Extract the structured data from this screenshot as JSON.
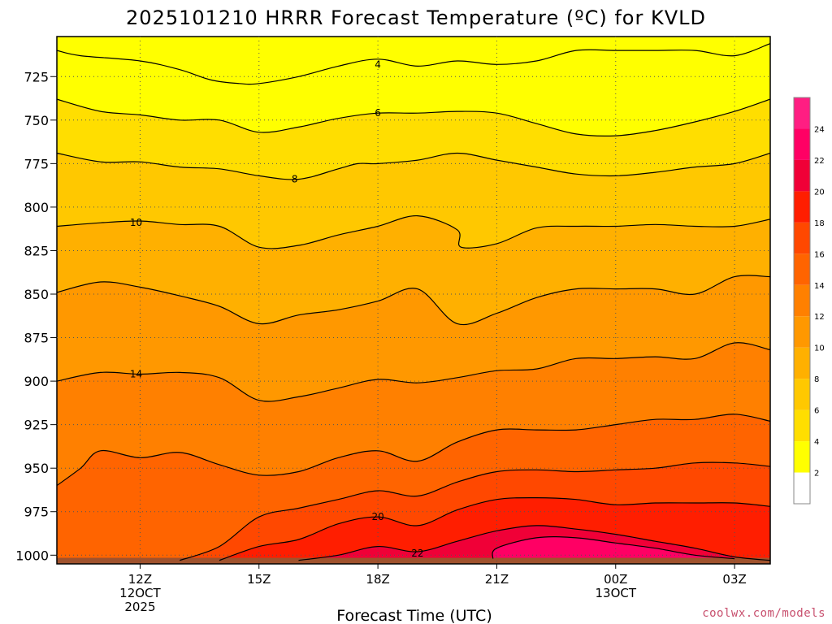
{
  "chart_data": {
    "type": "contour",
    "title": "2025101210 HRRR Forecast Temperature (ºC) for KVLD",
    "xlabel": "Forecast Time (UTC)",
    "credit": "coolwx.com/models",
    "pressure_ticks": [
      725,
      750,
      775,
      800,
      825,
      850,
      875,
      900,
      925,
      950,
      975,
      1000
    ],
    "ylim": [
      1005,
      702
    ],
    "xlim_hours": [
      9.9,
      27.9
    ],
    "x_ticks": [
      {
        "hour": 12,
        "lines": [
          "12Z",
          "12OCT",
          "2025"
        ]
      },
      {
        "hour": 15,
        "lines": [
          "15Z"
        ]
      },
      {
        "hour": 18,
        "lines": [
          "18Z"
        ]
      },
      {
        "hour": 21,
        "lines": [
          "21Z"
        ]
      },
      {
        "hour": 24,
        "lines": [
          "00Z",
          "13OCT"
        ]
      },
      {
        "hour": 27,
        "lines": [
          "03Z"
        ]
      }
    ],
    "colorbar": {
      "levels": [
        2,
        4,
        6,
        8,
        10,
        12,
        14,
        16,
        18,
        20,
        22,
        24
      ],
      "colors": [
        "#ffffff",
        "#ffff00",
        "#ffde00",
        "#ffc800",
        "#ffb000",
        "#ff9800",
        "#ff8000",
        "#ff6400",
        "#ff4800",
        "#ff1e00",
        "#f00037",
        "#ff0064",
        "#ff1e82"
      ]
    },
    "fill_colors": {
      "4": "#ffff00",
      "6": "#ffde00",
      "8": "#ffc800",
      "10": "#ffb000",
      "12": "#ff9800",
      "14": "#ff8000",
      "16": "#ff6400",
      "18": "#ff4800",
      "20": "#ff1e00",
      "22": "#f00037",
      "24": "#ff0064"
    },
    "ground_color": "#a0522d",
    "isotherms": [
      {
        "temp": 4,
        "label": "4",
        "label_at": [
          18.0,
          718
        ],
        "points": [
          [
            9.9,
            710
          ],
          [
            10.5,
            713
          ],
          [
            12,
            716
          ],
          [
            13,
            721
          ],
          [
            13.8,
            727
          ],
          [
            14.5,
            729
          ],
          [
            15,
            729
          ],
          [
            16,
            725
          ],
          [
            17,
            719
          ],
          [
            18,
            715
          ],
          [
            19,
            719
          ],
          [
            20,
            716
          ],
          [
            21,
            718
          ],
          [
            22,
            716
          ],
          [
            23,
            710
          ],
          [
            24,
            710
          ],
          [
            25,
            710
          ],
          [
            26,
            710
          ],
          [
            27,
            713
          ],
          [
            27.9,
            706
          ]
        ]
      },
      {
        "temp": 6,
        "label": "6",
        "label_at": [
          18.0,
          746
        ],
        "points": [
          [
            9.9,
            738
          ],
          [
            11,
            745
          ],
          [
            12,
            747
          ],
          [
            13,
            750
          ],
          [
            14,
            750
          ],
          [
            15,
            757
          ],
          [
            16,
            754
          ],
          [
            17,
            749
          ],
          [
            18,
            746
          ],
          [
            19,
            746
          ],
          [
            20,
            745
          ],
          [
            21,
            746
          ],
          [
            22,
            752
          ],
          [
            23,
            758
          ],
          [
            24,
            759
          ],
          [
            25,
            756
          ],
          [
            26,
            751
          ],
          [
            27,
            745
          ],
          [
            27.9,
            738
          ]
        ]
      },
      {
        "temp": 8,
        "label": "8",
        "label_at": [
          15.9,
          784
        ],
        "points": [
          [
            9.9,
            769
          ],
          [
            11,
            774
          ],
          [
            12,
            774
          ],
          [
            13,
            777
          ],
          [
            14,
            778
          ],
          [
            15,
            782
          ],
          [
            16,
            784
          ],
          [
            17,
            778
          ],
          [
            17.5,
            775
          ],
          [
            18,
            775
          ],
          [
            19,
            773
          ],
          [
            20,
            769
          ],
          [
            21,
            773
          ],
          [
            22,
            777
          ],
          [
            23,
            781
          ],
          [
            24,
            782
          ],
          [
            25,
            780
          ],
          [
            26,
            777
          ],
          [
            27,
            775
          ],
          [
            27.9,
            769
          ]
        ]
      },
      {
        "temp": 10,
        "label": "10",
        "label_at": [
          11.9,
          809
        ],
        "points": [
          [
            9.9,
            811
          ],
          [
            11,
            809
          ],
          [
            12,
            808
          ],
          [
            13,
            810
          ],
          [
            14,
            811
          ],
          [
            15,
            823
          ],
          [
            16,
            822
          ],
          [
            17,
            816
          ],
          [
            18,
            811
          ],
          [
            19,
            805
          ],
          [
            20,
            813
          ],
          [
            20.1,
            823
          ],
          [
            21,
            821
          ],
          [
            22,
            812
          ],
          [
            23,
            811
          ],
          [
            24,
            811
          ],
          [
            25,
            810
          ],
          [
            26,
            811
          ],
          [
            27,
            811
          ],
          [
            27.9,
            807
          ]
        ]
      },
      {
        "temp": 12,
        "points": [
          [
            9.9,
            849
          ],
          [
            11,
            843
          ],
          [
            12,
            846
          ],
          [
            13,
            851
          ],
          [
            14,
            857
          ],
          [
            15,
            867
          ],
          [
            16,
            862
          ],
          [
            17,
            859
          ],
          [
            18,
            854
          ],
          [
            19,
            847
          ],
          [
            20,
            867
          ],
          [
            21,
            861
          ],
          [
            22,
            852
          ],
          [
            23,
            847
          ],
          [
            24,
            847
          ],
          [
            25,
            847
          ],
          [
            26,
            850
          ],
          [
            27,
            840
          ],
          [
            27.9,
            840
          ]
        ]
      },
      {
        "temp": 14,
        "label": "14",
        "label_at": [
          11.9,
          896
        ],
        "points": [
          [
            9.9,
            900
          ],
          [
            11,
            895
          ],
          [
            12,
            896
          ],
          [
            13,
            895
          ],
          [
            14,
            898
          ],
          [
            15,
            911
          ],
          [
            16,
            909
          ],
          [
            17,
            904
          ],
          [
            18,
            899
          ],
          [
            19,
            901
          ],
          [
            20,
            898
          ],
          [
            21,
            894
          ],
          [
            22,
            893
          ],
          [
            23,
            887
          ],
          [
            24,
            887
          ],
          [
            25,
            886
          ],
          [
            26,
            887
          ],
          [
            27,
            878
          ],
          [
            27.9,
            882
          ]
        ]
      },
      {
        "temp": 16,
        "points": [
          [
            9.9,
            960
          ],
          [
            10.5,
            950
          ],
          [
            11,
            940
          ],
          [
            12,
            944
          ],
          [
            13,
            941
          ],
          [
            14,
            948
          ],
          [
            15,
            954
          ],
          [
            16,
            952
          ],
          [
            17,
            944
          ],
          [
            18,
            940
          ],
          [
            19,
            946
          ],
          [
            20,
            935
          ],
          [
            21,
            928
          ],
          [
            22,
            928
          ],
          [
            23,
            928
          ],
          [
            24,
            925
          ],
          [
            25,
            922
          ],
          [
            26,
            922
          ],
          [
            27,
            919
          ],
          [
            27.9,
            923
          ]
        ]
      },
      {
        "temp": 18,
        "points": [
          [
            13,
            1003
          ],
          [
            14,
            995
          ],
          [
            15,
            978
          ],
          [
            16,
            973
          ],
          [
            17,
            968
          ],
          [
            18,
            963
          ],
          [
            19,
            966
          ],
          [
            20,
            958
          ],
          [
            21,
            952
          ],
          [
            22,
            951
          ],
          [
            23,
            952
          ],
          [
            24,
            951
          ],
          [
            25,
            950
          ],
          [
            26,
            947
          ],
          [
            27,
            947
          ],
          [
            27.9,
            949
          ]
        ]
      },
      {
        "temp": 20,
        "label": "20",
        "label_at": [
          18.0,
          978
        ],
        "points": [
          [
            14,
            1003
          ],
          [
            15,
            995
          ],
          [
            16,
            991
          ],
          [
            17,
            982
          ],
          [
            18,
            978
          ],
          [
            19,
            983
          ],
          [
            20,
            974
          ],
          [
            21,
            968
          ],
          [
            22,
            967
          ],
          [
            23,
            968
          ],
          [
            24,
            971
          ],
          [
            25,
            970
          ],
          [
            26,
            970
          ],
          [
            27,
            970
          ],
          [
            27.9,
            972
          ]
        ]
      },
      {
        "temp": 22,
        "label": "22",
        "label_at": [
          19.0,
          999
        ],
        "points": [
          [
            16,
            1003
          ],
          [
            17,
            1000
          ],
          [
            18,
            995
          ],
          [
            19,
            998
          ],
          [
            20,
            992
          ],
          [
            21,
            986
          ],
          [
            22,
            983
          ],
          [
            23,
            985
          ],
          [
            24,
            988
          ],
          [
            25,
            992
          ],
          [
            26,
            996
          ],
          [
            27,
            1001
          ],
          [
            27.9,
            1003
          ]
        ]
      }
    ],
    "warm_core_24": [
      [
        20.9,
        1002
      ],
      [
        21,
        996
      ],
      [
        22,
        990
      ],
      [
        23,
        990
      ],
      [
        24,
        993
      ],
      [
        25,
        996
      ],
      [
        26,
        1000
      ],
      [
        27,
        1002
      ]
    ]
  }
}
